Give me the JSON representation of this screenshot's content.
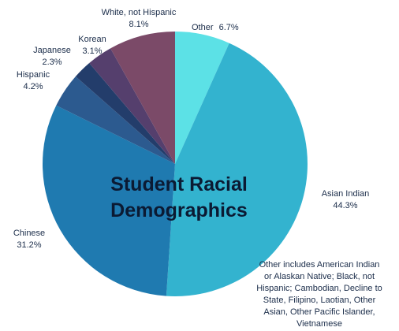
{
  "chart_data": {
    "type": "pie",
    "title": "Student Racial Demographics",
    "title_lines": [
      "Student Racial",
      "Demographics"
    ],
    "slices": [
      {
        "name": "Other",
        "value": 6.7,
        "label": "6.7%",
        "color": "#5ce1e6"
      },
      {
        "name": "Asian Indian",
        "value": 44.3,
        "label": "44.3%",
        "color": "#33b3cf"
      },
      {
        "name": "Chinese",
        "value": 31.2,
        "label": "31.2%",
        "color": "#1f7ab0"
      },
      {
        "name": "Hispanic",
        "value": 4.2,
        "label": "4.2%",
        "color": "#2c5a8f"
      },
      {
        "name": "Japanese",
        "value": 2.3,
        "label": "2.3%",
        "color": "#233d6b"
      },
      {
        "name": "Korean",
        "value": 3.1,
        "label": "3.1%",
        "color": "#553f6d"
      },
      {
        "name": "White, not Hispanic",
        "value": 8.1,
        "label": "8.1%",
        "color": "#7b4a68"
      }
    ],
    "footnote_lines": [
      "Other includes American Indian",
      "or Alaskan Native; Black, not",
      "Hispanic; Cambodian, Decline to",
      "State, Filipino, Laotian, Other",
      "Asian, Other Pacific Islander,",
      "Vietnamese"
    ]
  }
}
